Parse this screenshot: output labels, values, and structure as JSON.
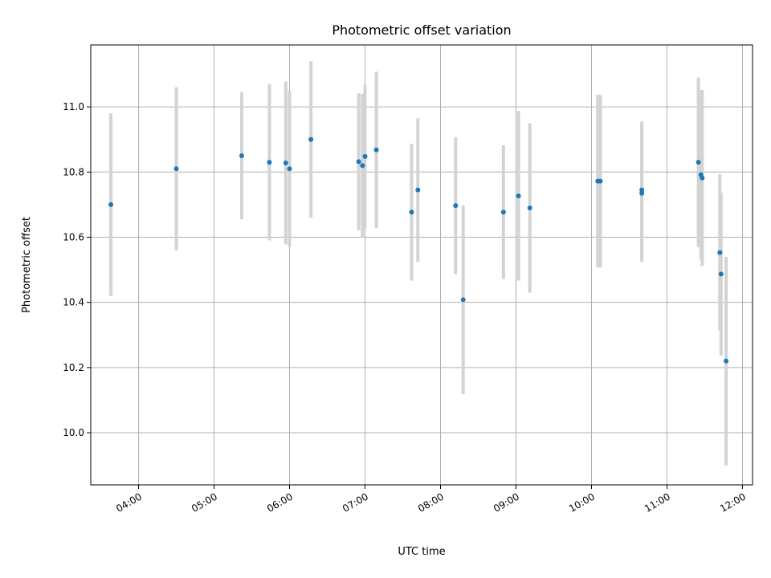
{
  "chart_data": {
    "type": "scatter",
    "title": "Photometric offset variation",
    "xlabel": "UTC time",
    "ylabel": "Photometric offset",
    "x_format": "HH:MM",
    "xlim": [
      "03:22",
      "12:08"
    ],
    "ylim": [
      9.84,
      11.19
    ],
    "x_ticks": [
      "04:00",
      "05:00",
      "06:00",
      "07:00",
      "08:00",
      "09:00",
      "10:00",
      "11:00",
      "12:00"
    ],
    "y_ticks": [
      10.0,
      10.2,
      10.4,
      10.6,
      10.8,
      11.0
    ],
    "y_tick_labels": [
      "10.0",
      "10.2",
      "10.4",
      "10.6",
      "10.8",
      "11.0"
    ],
    "grid": true,
    "colors": {
      "marker": "#1f77b4",
      "errorbar": "#d3d3d3",
      "grid": "#b0b0b0"
    },
    "points": [
      {
        "x": "03:38",
        "y": 10.7,
        "yerr": 0.28
      },
      {
        "x": "04:30",
        "y": 10.81,
        "yerr": 0.25
      },
      {
        "x": "05:22",
        "y": 10.85,
        "yerr": 0.195
      },
      {
        "x": "05:44",
        "y": 10.83,
        "yerr": 0.24
      },
      {
        "x": "05:57",
        "y": 10.828,
        "yerr": 0.25
      },
      {
        "x": "06:00",
        "y": 10.81,
        "yerr": 0.24
      },
      {
        "x": "06:17",
        "y": 10.9,
        "yerr": 0.24
      },
      {
        "x": "06:55",
        "y": 10.832,
        "yerr": 0.21
      },
      {
        "x": "06:58",
        "y": 10.82,
        "yerr": 0.22
      },
      {
        "x": "07:00",
        "y": 10.848,
        "yerr": 0.22
      },
      {
        "x": "07:09",
        "y": 10.868,
        "yerr": 0.24
      },
      {
        "x": "07:37",
        "y": 10.677,
        "yerr": 0.21
      },
      {
        "x": "07:42",
        "y": 10.745,
        "yerr": 0.22
      },
      {
        "x": "08:12",
        "y": 10.697,
        "yerr": 0.21
      },
      {
        "x": "08:18",
        "y": 10.408,
        "yerr": 0.29
      },
      {
        "x": "08:50",
        "y": 10.677,
        "yerr": 0.205
      },
      {
        "x": "09:02",
        "y": 10.727,
        "yerr": 0.26
      },
      {
        "x": "09:11",
        "y": 10.69,
        "yerr": 0.26
      },
      {
        "x": "10:05",
        "y": 10.772,
        "yerr": 0.265
      },
      {
        "x": "10:07",
        "y": 10.772,
        "yerr": 0.265
      },
      {
        "x": "10:40",
        "y": 10.745,
        "yerr": 0.21
      },
      {
        "x": "10:40",
        "y": 10.735,
        "yerr": 0.21
      },
      {
        "x": "11:25",
        "y": 10.83,
        "yerr": 0.26
      },
      {
        "x": "11:27",
        "y": 10.792,
        "yerr": 0.26
      },
      {
        "x": "11:28",
        "y": 10.782,
        "yerr": 0.27
      },
      {
        "x": "11:42",
        "y": 10.553,
        "yerr": 0.24
      },
      {
        "x": "11:43",
        "y": 10.487,
        "yerr": 0.25
      },
      {
        "x": "11:47",
        "y": 10.22,
        "yerr": 0.32
      }
    ]
  }
}
